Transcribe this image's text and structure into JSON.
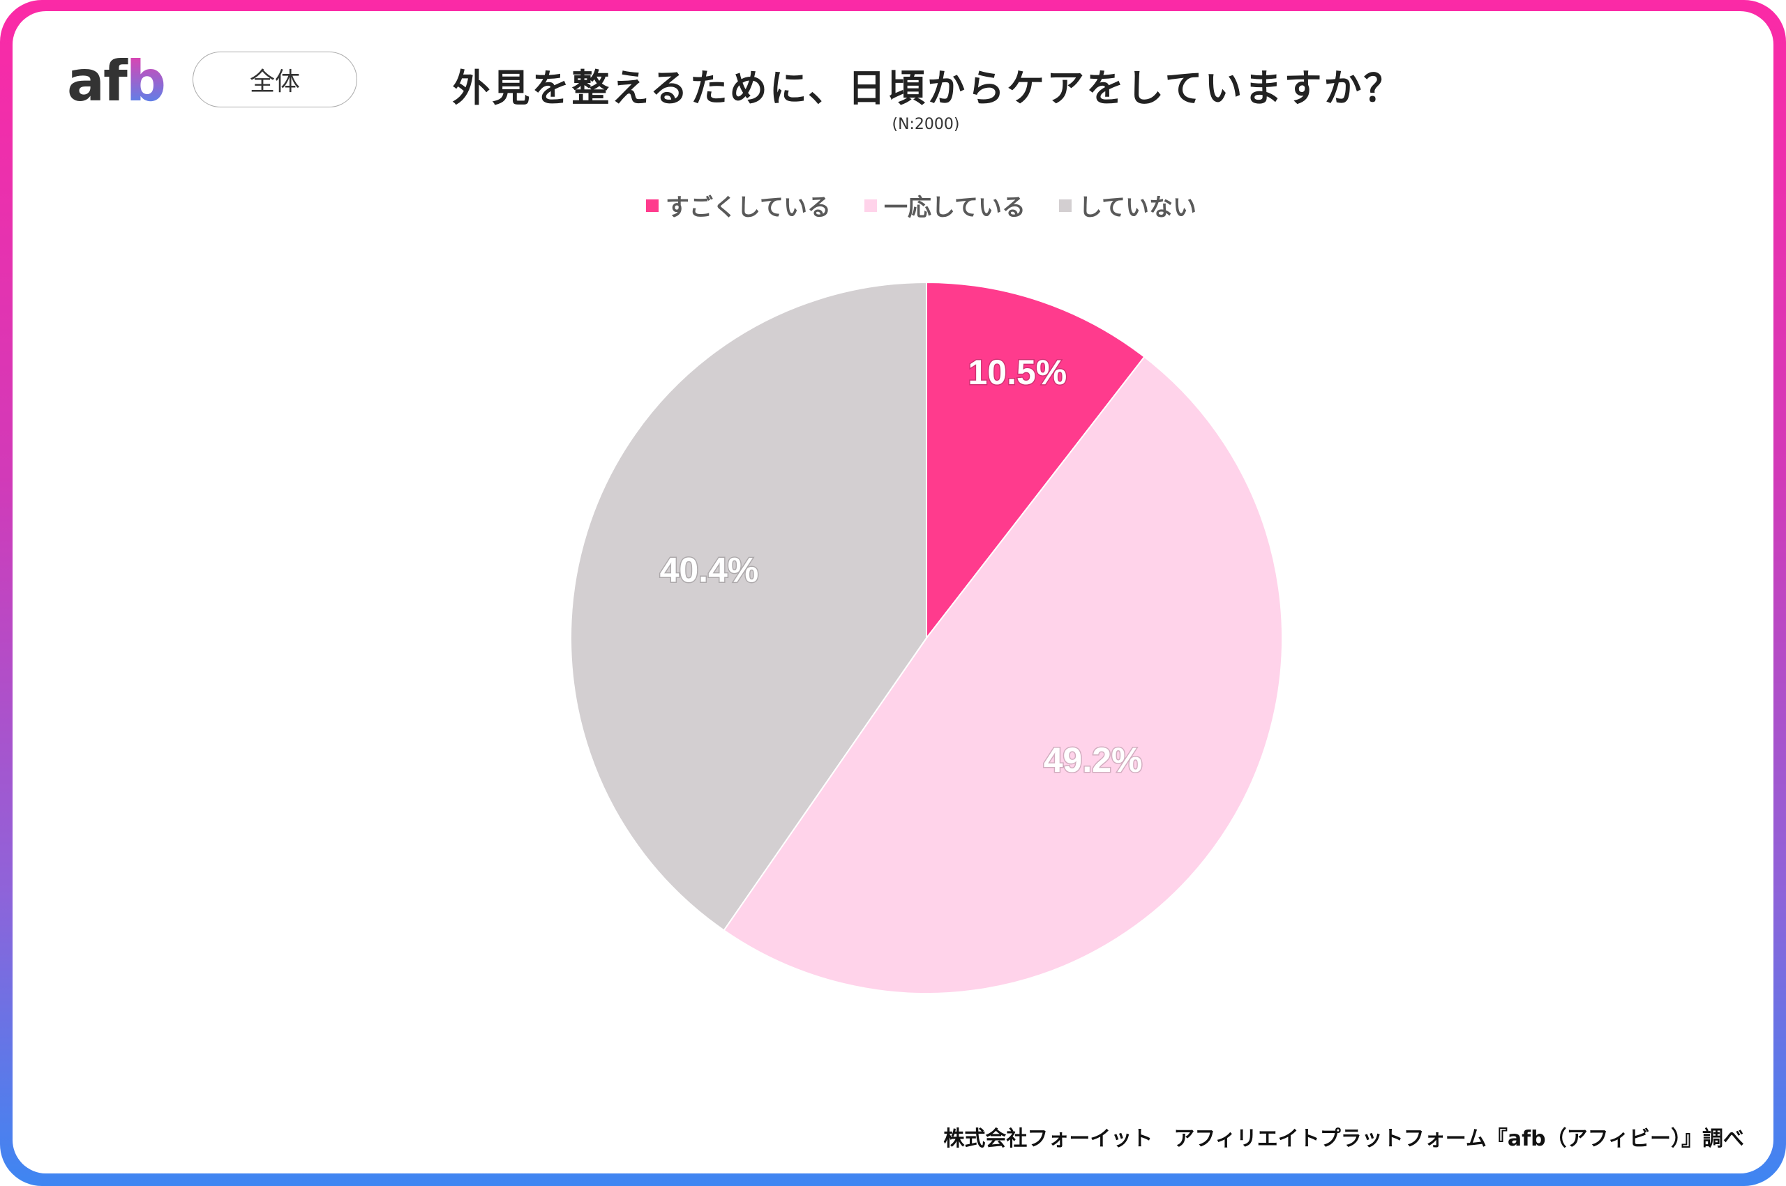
{
  "header": {
    "logo": "afb",
    "logo_parts": [
      "af",
      "b"
    ],
    "segment_label": "全体"
  },
  "chart_data": {
    "type": "pie",
    "title": "外見を整えるために、日頃からケアをしていますか？",
    "subtitle": "(N:2000)",
    "start": "top, clockwise",
    "legend_position": "top",
    "categories": [
      "すごくしている",
      "一応している",
      "していない"
    ],
    "values": [
      10.5,
      49.2,
      40.4
    ],
    "labels": [
      "10.5%",
      "49.2%",
      "40.4%"
    ],
    "colors": [
      "#ff3b8d",
      "#ffd3ea",
      "#d3cfd1"
    ]
  },
  "footer": {
    "credit": "株式会社フォーイット　アフィリエイトプラットフォーム『afb（アフィビー）』調べ"
  }
}
